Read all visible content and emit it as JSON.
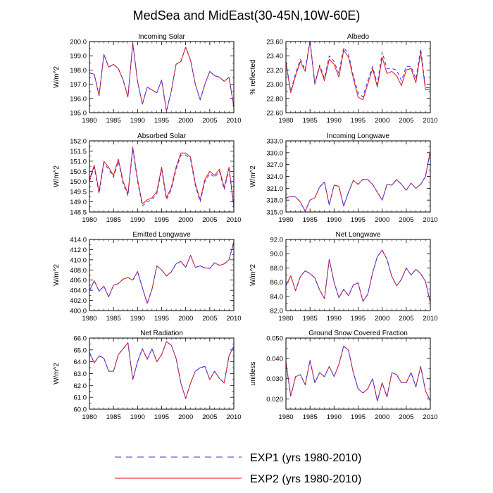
{
  "figure": {
    "title": "MedSea and MidEast(30-45N,10W-60E)",
    "legend": [
      {
        "label": "EXP1 (yrs 1980-2010)",
        "color": "#3333ee",
        "dash": "dashed"
      },
      {
        "label": "EXP2 (yrs 1980-2010)",
        "color": "#ee1111",
        "dash": "solid"
      }
    ]
  },
  "chart_data": [
    {
      "type": "line",
      "title": "Incoming Solar",
      "ylabel": "W/m^2",
      "xlim": [
        1980,
        2010
      ],
      "ylim": [
        195.0,
        200.0
      ],
      "xticks": [
        1980,
        1985,
        1990,
        1995,
        2000,
        2005,
        2010
      ],
      "yticks": [
        "195.0",
        "196.0",
        "197.0",
        "198.0",
        "199.0",
        "200.0"
      ],
      "x": [
        1980,
        1981,
        1982,
        1983,
        1984,
        1985,
        1986,
        1987,
        1988,
        1989,
        1990,
        1991,
        1992,
        1993,
        1994,
        1995,
        1996,
        1997,
        1998,
        1999,
        2000,
        2001,
        2002,
        2003,
        2004,
        2005,
        2006,
        2007,
        2008,
        2009,
        2010
      ],
      "series": [
        {
          "name": "EXP1 (yrs 1980-2010)",
          "values": [
            197.8,
            197.7,
            196.2,
            199.1,
            198.2,
            198.4,
            198.1,
            197.3,
            196.1,
            199.9,
            197.2,
            195.6,
            196.8,
            196.6,
            196.4,
            197.3,
            195.1,
            196.5,
            198.4,
            198.6,
            199.6,
            198.7,
            197.0,
            195.9,
            197.0,
            197.9,
            197.6,
            197.5,
            197.2,
            197.5,
            195.4
          ]
        },
        {
          "name": "EXP2 (yrs 1980-2010)",
          "values": [
            197.8,
            197.7,
            196.2,
            199.1,
            198.2,
            198.4,
            198.1,
            197.3,
            196.1,
            199.9,
            197.2,
            195.6,
            196.8,
            196.6,
            196.4,
            197.3,
            195.1,
            196.5,
            198.4,
            198.6,
            199.6,
            198.7,
            197.0,
            195.9,
            197.0,
            197.9,
            197.6,
            197.5,
            197.2,
            197.5,
            195.4
          ]
        }
      ]
    },
    {
      "type": "line",
      "title": "Albedo",
      "ylabel": "% reflected",
      "xlim": [
        1980,
        2010
      ],
      "ylim": [
        22.6,
        23.6
      ],
      "xticks": [
        1980,
        1985,
        1990,
        1995,
        2000,
        2005,
        2010
      ],
      "yticks": [
        "22.60",
        "22.80",
        "23.00",
        "23.20",
        "23.40",
        "23.60"
      ],
      "x": [
        1980,
        1981,
        1982,
        1983,
        1984,
        1985,
        1986,
        1987,
        1988,
        1989,
        1990,
        1991,
        1992,
        1993,
        1994,
        1995,
        1996,
        1997,
        1998,
        1999,
        2000,
        2001,
        2002,
        2003,
        2004,
        2005,
        2006,
        2007,
        2008,
        2009,
        2010
      ],
      "series": [
        {
          "name": "EXP1 (yrs 1980-2010)",
          "values": [
            23.32,
            22.9,
            23.15,
            23.35,
            23.2,
            23.62,
            23.02,
            23.27,
            23.08,
            23.4,
            23.32,
            23.15,
            23.52,
            23.42,
            23.12,
            22.88,
            22.82,
            23.05,
            23.25,
            23.0,
            23.45,
            23.22,
            23.22,
            23.2,
            23.05,
            23.25,
            23.25,
            23.07,
            23.5,
            22.95,
            22.95
          ]
        },
        {
          "name": "EXP2 (yrs 1980-2010)",
          "values": [
            23.3,
            22.88,
            23.12,
            23.32,
            23.18,
            23.6,
            23.0,
            23.25,
            23.05,
            23.35,
            23.28,
            23.1,
            23.48,
            23.38,
            23.08,
            22.82,
            22.78,
            23.0,
            23.22,
            22.96,
            23.38,
            23.15,
            23.18,
            23.12,
            22.98,
            23.2,
            23.22,
            23.02,
            23.45,
            22.92,
            22.93
          ]
        }
      ]
    },
    {
      "type": "line",
      "title": "Absorbed Solar",
      "ylabel": "W/m^2",
      "xlim": [
        1980,
        2010
      ],
      "ylim": [
        148.5,
        152.0
      ],
      "xticks": [
        1980,
        1985,
        1990,
        1995,
        2000,
        2005,
        2010
      ],
      "yticks": [
        "148.5",
        "149.0",
        "149.5",
        "150.0",
        "150.5",
        "151.0",
        "151.5",
        "152.0"
      ],
      "x": [
        1980,
        1981,
        1982,
        1983,
        1984,
        1985,
        1986,
        1987,
        1988,
        1989,
        1990,
        1991,
        1992,
        1993,
        1994,
        1995,
        1996,
        1997,
        1998,
        1999,
        2000,
        2001,
        2002,
        2003,
        2004,
        2005,
        2006,
        2007,
        2008,
        2009,
        2010
      ],
      "series": [
        {
          "name": "EXP1 (yrs 1980-2010)",
          "values": [
            150.0,
            150.7,
            149.4,
            150.9,
            150.6,
            150.2,
            151.0,
            149.9,
            149.3,
            151.6,
            150.0,
            148.8,
            149.0,
            149.1,
            149.4,
            150.6,
            149.1,
            149.6,
            150.6,
            151.3,
            151.3,
            151.1,
            149.8,
            149.0,
            150.0,
            150.4,
            150.2,
            150.5,
            149.6,
            150.6,
            148.7
          ]
        },
        {
          "name": "EXP2 (yrs 1980-2010)",
          "values": [
            150.1,
            150.8,
            149.5,
            151.0,
            150.7,
            150.3,
            151.1,
            150.0,
            149.4,
            151.7,
            150.1,
            148.9,
            149.1,
            149.2,
            149.5,
            150.7,
            149.2,
            149.7,
            150.7,
            151.4,
            151.4,
            151.2,
            149.9,
            149.1,
            150.1,
            150.5,
            150.3,
            150.6,
            149.7,
            150.7,
            148.8
          ]
        }
      ]
    },
    {
      "type": "line",
      "title": "Incoming Longwave",
      "ylabel": "W/m^2",
      "xlim": [
        1980,
        2010
      ],
      "ylim": [
        315.0,
        333.0
      ],
      "xticks": [
        1980,
        1985,
        1990,
        1995,
        2000,
        2005,
        2010
      ],
      "yticks": [
        "315.0",
        "318.0",
        "321.0",
        "324.0",
        "327.0",
        "330.0",
        "333.0"
      ],
      "x": [
        1980,
        1981,
        1982,
        1983,
        1984,
        1985,
        1986,
        1987,
        1988,
        1989,
        1990,
        1991,
        1992,
        1993,
        1994,
        1995,
        1996,
        1997,
        1998,
        1999,
        2000,
        2001,
        2002,
        2003,
        2004,
        2005,
        2006,
        2007,
        2008,
        2009,
        2010
      ],
      "series": [
        {
          "name": "EXP1 (yrs 1980-2010)",
          "values": [
            318.5,
            319.0,
            318.8,
            317.5,
            315.2,
            318.0,
            318.6,
            321.3,
            322.6,
            316.8,
            321.8,
            321.5,
            316.5,
            320.0,
            323.0,
            322.0,
            323.3,
            323.2,
            322.0,
            320.0,
            318.0,
            322.0,
            321.8,
            323.2,
            322.0,
            320.5,
            322.3,
            321.0,
            322.0,
            324.0,
            330.5
          ]
        },
        {
          "name": "EXP2 (yrs 1980-2010)",
          "values": [
            318.5,
            319.0,
            318.8,
            317.5,
            315.2,
            318.0,
            318.6,
            321.3,
            322.6,
            316.8,
            321.8,
            321.5,
            316.5,
            320.0,
            323.0,
            322.0,
            323.3,
            323.2,
            322.0,
            320.0,
            318.0,
            322.0,
            321.8,
            323.2,
            322.0,
            320.5,
            322.3,
            321.0,
            322.0,
            324.0,
            330.5
          ]
        }
      ]
    },
    {
      "type": "line",
      "title": "Emitted Longwave",
      "ylabel": "W/m^2",
      "xlim": [
        1980,
        2010
      ],
      "ylim": [
        400.0,
        414.0
      ],
      "xticks": [
        1980,
        1985,
        1990,
        1995,
        2000,
        2005,
        2010
      ],
      "yticks": [
        "400.0",
        "402.0",
        "404.0",
        "406.0",
        "408.0",
        "410.0",
        "412.0",
        "414.0"
      ],
      "x": [
        1980,
        1981,
        1982,
        1983,
        1984,
        1985,
        1986,
        1987,
        1988,
        1989,
        1990,
        1991,
        1992,
        1993,
        1994,
        1995,
        1996,
        1997,
        1998,
        1999,
        2000,
        2001,
        2002,
        2003,
        2004,
        2005,
        2006,
        2007,
        2008,
        2009,
        2010
      ],
      "series": [
        {
          "name": "EXP1 (yrs 1980-2010)",
          "values": [
            403.9,
            405.9,
            403.8,
            404.8,
            402.7,
            405.0,
            405.3,
            406.2,
            406.5,
            406.0,
            407.7,
            404.5,
            401.4,
            404.2,
            408.8,
            408.0,
            406.8,
            407.6,
            409.2,
            409.7,
            408.5,
            410.9,
            408.5,
            408.8,
            408.4,
            408.3,
            409.4,
            408.9,
            409.2,
            410.0,
            413.5
          ]
        },
        {
          "name": "EXP2 (yrs 1980-2010)",
          "values": [
            403.9,
            405.9,
            403.8,
            404.8,
            402.7,
            405.0,
            405.3,
            406.2,
            406.5,
            406.0,
            407.7,
            404.5,
            401.4,
            404.2,
            408.8,
            408.0,
            406.8,
            407.6,
            409.2,
            409.7,
            408.5,
            410.9,
            408.5,
            408.8,
            408.4,
            408.3,
            409.4,
            408.9,
            409.2,
            410.0,
            413.5
          ]
        }
      ]
    },
    {
      "type": "line",
      "title": "Net Longwave",
      "ylabel": "W/m^2",
      "xlim": [
        1980,
        2010
      ],
      "ylim": [
        82.0,
        92.0
      ],
      "xticks": [
        1980,
        1985,
        1990,
        1995,
        2000,
        2005,
        2010
      ],
      "yticks": [
        "82.0",
        "84.0",
        "86.0",
        "88.0",
        "90.0",
        "92.0"
      ],
      "x": [
        1980,
        1981,
        1982,
        1983,
        1984,
        1985,
        1986,
        1987,
        1988,
        1989,
        1990,
        1991,
        1992,
        1993,
        1994,
        1995,
        1996,
        1997,
        1998,
        1999,
        2000,
        2001,
        2002,
        2003,
        2004,
        2005,
        2006,
        2007,
        2008,
        2009,
        2010
      ],
      "series": [
        {
          "name": "EXP1 (yrs 1980-2010)",
          "values": [
            85.5,
            86.9,
            84.8,
            86.8,
            87.6,
            87.2,
            86.6,
            84.9,
            83.7,
            89.2,
            86.0,
            83.8,
            85.0,
            84.1,
            85.6,
            85.9,
            83.3,
            84.3,
            87.3,
            89.6,
            90.5,
            89.2,
            86.8,
            85.5,
            86.4,
            88.0,
            87.0,
            87.8,
            87.2,
            86.1,
            83.1
          ]
        },
        {
          "name": "EXP2 (yrs 1980-2010)",
          "values": [
            85.5,
            86.9,
            84.8,
            86.8,
            87.6,
            87.2,
            86.6,
            84.9,
            83.7,
            89.2,
            86.0,
            83.8,
            85.0,
            84.1,
            85.6,
            85.9,
            83.3,
            84.3,
            87.3,
            89.6,
            90.5,
            89.2,
            86.8,
            85.5,
            86.4,
            88.0,
            87.0,
            87.8,
            87.2,
            86.1,
            83.1
          ]
        }
      ]
    },
    {
      "type": "line",
      "title": "Net Radiation",
      "ylabel": "W/m^2",
      "xlim": [
        1980,
        2010
      ],
      "ylim": [
        60.0,
        66.0
      ],
      "xticks": [
        1980,
        1985,
        1990,
        1995,
        2000,
        2005,
        2010
      ],
      "yticks": [
        "60.0",
        "61.0",
        "62.0",
        "63.0",
        "64.0",
        "65.0",
        "66.0"
      ],
      "x": [
        1980,
        1981,
        1982,
        1983,
        1984,
        1985,
        1986,
        1987,
        1988,
        1989,
        1990,
        1991,
        1992,
        1993,
        1994,
        1995,
        1996,
        1997,
        1998,
        1999,
        2000,
        2001,
        2002,
        2003,
        2004,
        2005,
        2006,
        2007,
        2008,
        2009,
        2010
      ],
      "series": [
        {
          "name": "EXP1 (yrs 1980-2010)",
          "values": [
            64.8,
            63.9,
            64.5,
            64.3,
            63.2,
            63.2,
            64.6,
            65.1,
            65.6,
            62.5,
            64.0,
            65.1,
            64.2,
            65.1,
            64.0,
            64.6,
            65.7,
            65.4,
            64.3,
            62.2,
            60.9,
            62.2,
            63.2,
            63.5,
            63.6,
            62.5,
            63.2,
            62.6,
            62.2,
            64.5,
            65.3
          ]
        },
        {
          "name": "EXP2 (yrs 1980-2010)",
          "values": [
            64.8,
            63.9,
            64.5,
            64.3,
            63.2,
            63.2,
            64.6,
            65.1,
            65.6,
            62.5,
            64.0,
            65.1,
            64.2,
            65.1,
            64.0,
            64.6,
            65.7,
            65.4,
            64.3,
            62.2,
            60.9,
            62.2,
            63.2,
            63.5,
            63.6,
            62.5,
            63.2,
            62.6,
            62.2,
            64.5,
            65.3
          ]
        }
      ]
    },
    {
      "type": "line",
      "title": "Ground Snow Covered Fraction",
      "ylabel": "unitless",
      "xlim": [
        1980,
        2010
      ],
      "ylim": [
        0.015,
        0.05
      ],
      "xticks": [
        1980,
        1985,
        1990,
        1995,
        2000,
        2005,
        2010
      ],
      "yticks": [
        "0.020",
        "0.030",
        "0.040",
        "0.050"
      ],
      "x": [
        1980,
        1981,
        1982,
        1983,
        1984,
        1985,
        1986,
        1987,
        1988,
        1989,
        1990,
        1991,
        1992,
        1993,
        1994,
        1995,
        1996,
        1997,
        1998,
        1999,
        2000,
        2001,
        2002,
        2003,
        2004,
        2005,
        2006,
        2007,
        2008,
        2009,
        2010
      ],
      "series": [
        {
          "name": "EXP1 (yrs 1980-2010)",
          "values": [
            0.038,
            0.0215,
            0.031,
            0.032,
            0.027,
            0.039,
            0.028,
            0.033,
            0.031,
            0.036,
            0.031,
            0.037,
            0.046,
            0.044,
            0.033,
            0.025,
            0.023,
            0.025,
            0.03,
            0.019,
            0.028,
            0.021,
            0.033,
            0.032,
            0.028,
            0.028,
            0.033,
            0.026,
            0.036,
            0.024,
            0.019
          ]
        },
        {
          "name": "EXP2 (yrs 1980-2010)",
          "values": [
            0.038,
            0.0215,
            0.031,
            0.032,
            0.027,
            0.039,
            0.028,
            0.033,
            0.031,
            0.036,
            0.031,
            0.037,
            0.046,
            0.044,
            0.033,
            0.025,
            0.023,
            0.025,
            0.03,
            0.019,
            0.028,
            0.021,
            0.033,
            0.032,
            0.028,
            0.028,
            0.033,
            0.026,
            0.036,
            0.024,
            0.019
          ]
        }
      ]
    }
  ]
}
